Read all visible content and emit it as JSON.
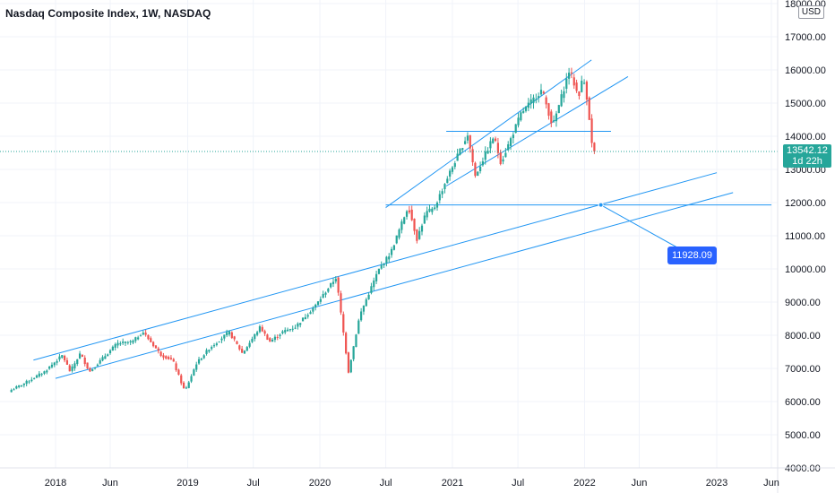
{
  "header": {
    "title": "Nasdaq Composite Index, 1W, NASDAQ",
    "currency": "USD"
  },
  "price_tag": {
    "price": "13542.12",
    "countdown": "1d 22h"
  },
  "annotation": {
    "label": "11928.09"
  },
  "colors": {
    "up": "#26a69a",
    "down": "#ef5350",
    "line": "#2196f3",
    "grid": "#f0f3fa",
    "price_line": "#26a69a"
  },
  "chart_data": {
    "type": "candlestick",
    "title": "Nasdaq Composite Index, 1W, NASDAQ",
    "x_ticks": [
      "2018",
      "Jun",
      "2019",
      "Jul",
      "2020",
      "Jul",
      "2021",
      "Jul",
      "2022",
      "Jun",
      "2023",
      "Jun"
    ],
    "x_tick_dates": [
      "2018-01-01",
      "2018-06-01",
      "2019-01-01",
      "2019-07-01",
      "2020-01-01",
      "2020-07-01",
      "2021-01-01",
      "2021-07-01",
      "2022-01-01",
      "2022-06-01",
      "2023-01-01",
      "2023-06-01"
    ],
    "y_ticks": [
      "4000.00",
      "5000.00",
      "6000.00",
      "7000.00",
      "8000.00",
      "9000.00",
      "10000.00",
      "11000.00",
      "12000.00",
      "13000.00",
      "14000.00",
      "15000.00",
      "16000.00",
      "17000.00",
      "18000.00"
    ],
    "ylim": [
      4000,
      18000
    ],
    "yscale": "linear",
    "series": [
      {
        "kind": "close_path",
        "points": [
          [
            "2017-09-01",
            6350
          ],
          [
            "2017-10-15",
            6600
          ],
          [
            "2017-12-01",
            6900
          ],
          [
            "2018-01-20",
            7400
          ],
          [
            "2018-02-10",
            6900
          ],
          [
            "2018-03-10",
            7450
          ],
          [
            "2018-04-05",
            6900
          ],
          [
            "2018-05-15",
            7350
          ],
          [
            "2018-06-20",
            7750
          ],
          [
            "2018-08-01",
            7800
          ],
          [
            "2018-08-30",
            8100
          ],
          [
            "2018-10-20",
            7400
          ],
          [
            "2018-11-20",
            7250
          ],
          [
            "2018-12-24",
            6300
          ],
          [
            "2019-01-25",
            7150
          ],
          [
            "2019-03-01",
            7600
          ],
          [
            "2019-04-25",
            8100
          ],
          [
            "2019-06-01",
            7450
          ],
          [
            "2019-07-20",
            8250
          ],
          [
            "2019-08-15",
            7800
          ],
          [
            "2019-09-20",
            8100
          ],
          [
            "2019-10-25",
            8250
          ],
          [
            "2019-12-20",
            8900
          ],
          [
            "2020-02-15",
            9750
          ],
          [
            "2020-03-20",
            6900
          ],
          [
            "2020-04-20",
            8600
          ],
          [
            "2020-06-10",
            9950
          ],
          [
            "2020-07-15",
            10500
          ],
          [
            "2020-09-01",
            11900
          ],
          [
            "2020-09-25",
            10900
          ],
          [
            "2020-10-20",
            11700
          ],
          [
            "2020-11-10",
            11800
          ],
          [
            "2020-12-20",
            12800
          ],
          [
            "2021-02-12",
            14050
          ],
          [
            "2021-03-05",
            12800
          ],
          [
            "2021-04-25",
            14000
          ],
          [
            "2021-05-15",
            13200
          ],
          [
            "2021-07-10",
            14700
          ],
          [
            "2021-09-05",
            15400
          ],
          [
            "2021-10-05",
            14300
          ],
          [
            "2021-11-20",
            16000
          ],
          [
            "2021-12-15",
            15200
          ],
          [
            "2021-12-28",
            15800
          ],
          [
            "2022-01-10",
            15000
          ],
          [
            "2022-01-21",
            13768
          ],
          [
            "2022-01-28",
            13542
          ]
        ]
      }
    ],
    "drawings": [
      {
        "kind": "horizontal_line",
        "y": 14150,
        "x_from": "2020-12-15",
        "x_to": "2022-03-15"
      },
      {
        "kind": "horizontal_line",
        "y": 11928.09,
        "x_from": "2020-07-01",
        "x_to": "2023-06-01"
      },
      {
        "kind": "trend_line",
        "from": [
          "2017-11-01",
          7250
        ],
        "to": [
          "2023-01-01",
          12900
        ]
      },
      {
        "kind": "trend_line",
        "from": [
          "2018-01-01",
          6700
        ],
        "to": [
          "2023-02-15",
          12300
        ]
      },
      {
        "kind": "trend_line",
        "from": [
          "2020-07-01",
          11850
        ],
        "to": [
          "2022-01-20",
          16300
        ]
      },
      {
        "kind": "trend_line",
        "from": [
          "2020-12-15",
          12500
        ],
        "to": [
          "2022-05-01",
          15800
        ]
      },
      {
        "kind": "callout",
        "anchor": [
          "2022-02-15",
          11928.09
        ],
        "label_value": 11928.09
      }
    ],
    "current_price": 13542.12,
    "grid": true
  }
}
